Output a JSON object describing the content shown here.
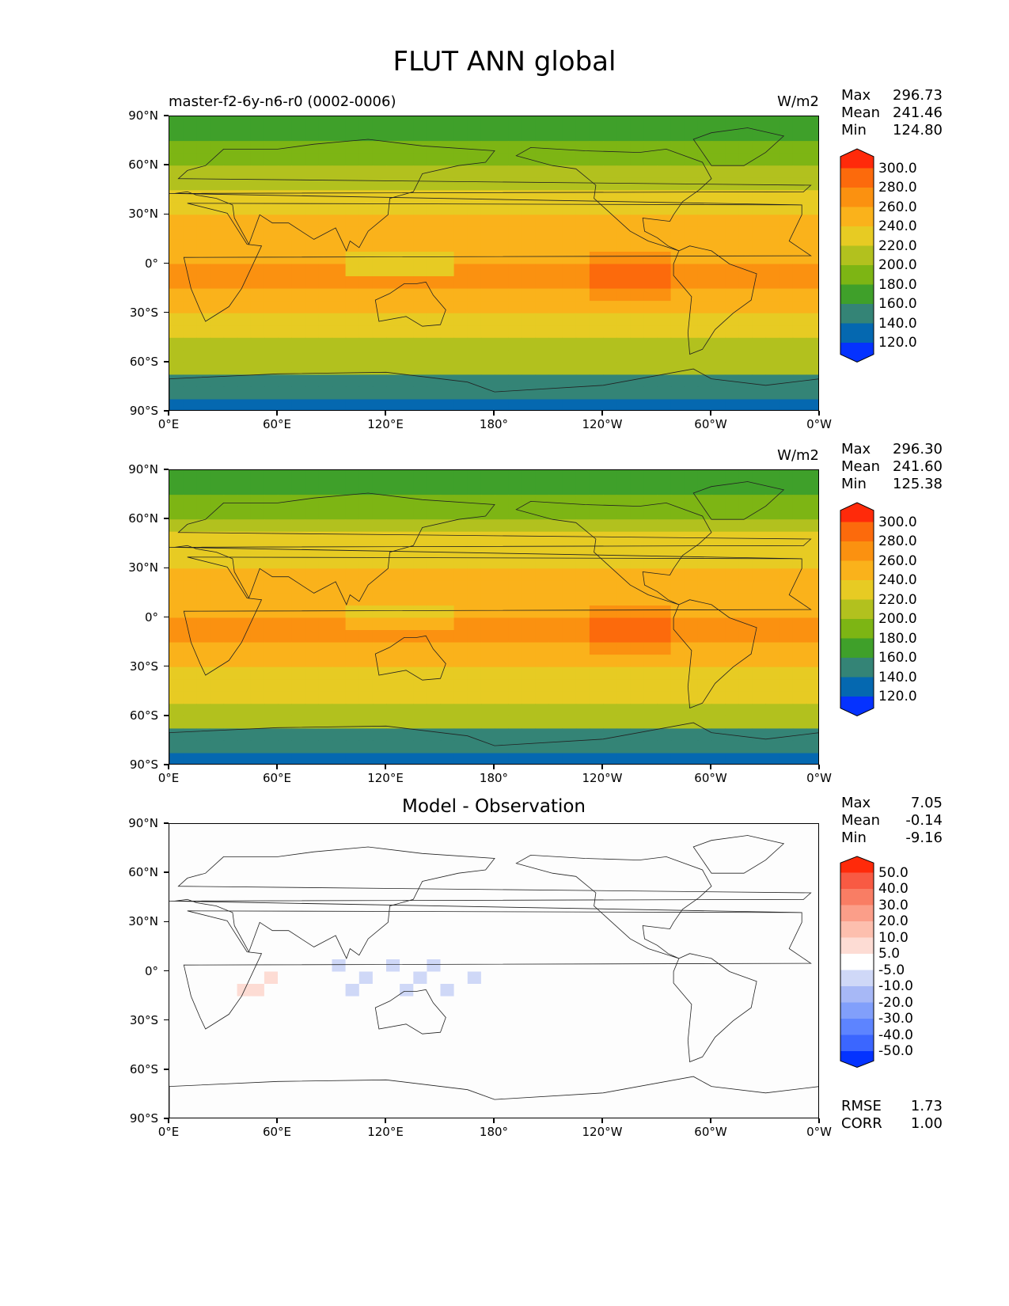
{
  "figure": {
    "title": "FLUT ANN global",
    "panels": [
      {
        "id": "test",
        "label": "master-f2-6y-n6-r0 (0002-0006)",
        "units": "W/m2",
        "stats": {
          "Max": "296.73",
          "Mean": "241.46",
          "Min": "124.80"
        }
      },
      {
        "id": "reference",
        "label": "",
        "units": "W/m2",
        "stats": {
          "Max": "296.30",
          "Mean": "241.60",
          "Min": "125.38"
        }
      },
      {
        "id": "diff",
        "label": "Model - Observation",
        "units": "",
        "stats": {
          "Max": "7.05",
          "Mean": "-0.14",
          "Min": "-9.16"
        },
        "metrics": {
          "RMSE": "1.73",
          "CORR": "1.00"
        }
      }
    ],
    "y_ticks": [
      "90°N",
      "60°N",
      "30°N",
      "0°",
      "30°S",
      "60°S",
      "90°S"
    ],
    "x_ticks": [
      "0°E",
      "60°E",
      "120°E",
      "180°",
      "120°W",
      "60°W",
      "0°W"
    ]
  },
  "chart_data": [
    {
      "type": "heatmap",
      "title": "master-f2-6y-n6-r0 (0002-0006)",
      "units": "W/m2",
      "xlim": [
        0,
        360
      ],
      "ylim": [
        -90,
        90
      ],
      "colorbar_levels": [
        "120.0",
        "140.0",
        "160.0",
        "180.0",
        "200.0",
        "220.0",
        "240.0",
        "260.0",
        "280.0",
        "300.0"
      ],
      "colorbar_colors": [
        "#0532ff",
        "#0568b0",
        "#348476",
        "#3fa02a",
        "#7db514",
        "#b2c11e",
        "#e7cb23",
        "#fab21b",
        "#fb9110",
        "#fc6a0c",
        "#ff2a0a"
      ],
      "max": 296.73,
      "mean": 241.46,
      "min": 124.8
    },
    {
      "type": "heatmap",
      "title": "",
      "units": "W/m2",
      "xlim": [
        0,
        360
      ],
      "ylim": [
        -90,
        90
      ],
      "colorbar_levels": [
        "120.0",
        "140.0",
        "160.0",
        "180.0",
        "200.0",
        "220.0",
        "240.0",
        "260.0",
        "280.0",
        "300.0"
      ],
      "colorbar_colors": [
        "#0532ff",
        "#0568b0",
        "#348476",
        "#3fa02a",
        "#7db514",
        "#b2c11e",
        "#e7cb23",
        "#fab21b",
        "#fb9110",
        "#fc6a0c",
        "#ff2a0a"
      ],
      "max": 296.3,
      "mean": 241.6,
      "min": 125.38
    },
    {
      "type": "heatmap",
      "title": "Model - Observation",
      "units": "",
      "xlim": [
        0,
        360
      ],
      "ylim": [
        -90,
        90
      ],
      "colorbar_levels": [
        "-50.0",
        "-40.0",
        "-30.0",
        "-20.0",
        "-10.0",
        "-5.0",
        "5.0",
        "10.0",
        "20.0",
        "30.0",
        "40.0",
        "50.0"
      ],
      "colorbar_colors": [
        "#0433ff",
        "#3b66ff",
        "#5d84ff",
        "#819ffb",
        "#a7b8f6",
        "#cfd8f7",
        "#ffffff",
        "#fddcd4",
        "#fdbfae",
        "#fb9e89",
        "#f97d64",
        "#f85a43",
        "#ff2a0a"
      ],
      "max": 7.05,
      "mean": -0.14,
      "min": -9.16,
      "rmse": 1.73,
      "corr": 1.0
    }
  ]
}
